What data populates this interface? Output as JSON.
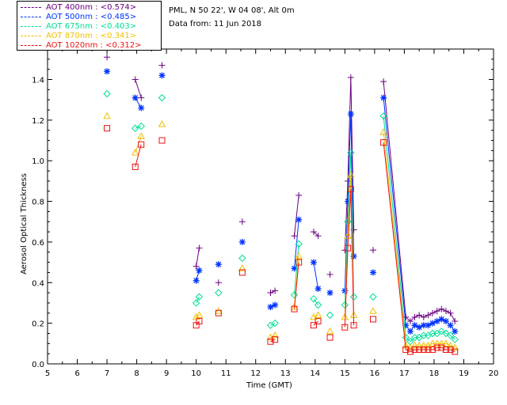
{
  "info": {
    "station": "PML, N 50 22', W 04 08', Alt 0m",
    "date": "Data from: 11 Jun 2018"
  },
  "colors": {
    "aot400": "#6a0080",
    "aot500": "#0033ff",
    "aot675": "#00dd99",
    "aot870": "#f0c000",
    "aot1020": "#ee1111"
  },
  "chart_data": {
    "type": "scatter",
    "xlabel": "Time (GMT)",
    "ylabel": "Aerosol Optical Thickness",
    "xlim": [
      5,
      20
    ],
    "ylim": [
      0,
      1.55
    ],
    "xticks": [
      5,
      6,
      7,
      8,
      9,
      10,
      11,
      12,
      13,
      14,
      15,
      16,
      17,
      18,
      19,
      20
    ],
    "yticks": [
      0.0,
      0.2,
      0.4,
      0.6,
      0.8,
      1.0,
      1.2,
      1.4
    ],
    "ytick_labels": [
      "0.0",
      "0.2",
      "0.4",
      "0.6",
      "0.8",
      "1.0",
      "1.2",
      "1.4"
    ],
    "grid": false,
    "legend_position": "top-left",
    "x": [
      7.0,
      7.95,
      8.15,
      8.85,
      10.0,
      10.1,
      10.75,
      11.55,
      12.5,
      12.65,
      13.3,
      13.45,
      13.95,
      14.1,
      14.5,
      15.0,
      15.1,
      15.2,
      15.3,
      15.95,
      16.3,
      17.05,
      17.2,
      17.35,
      17.5,
      17.65,
      17.8,
      17.95,
      18.1,
      18.25,
      18.4,
      18.55,
      18.7
    ],
    "segments": [
      [
        1,
        2
      ],
      [
        4,
        5
      ],
      [
        8,
        9
      ],
      [
        10,
        11
      ],
      [
        12,
        13
      ],
      [
        15,
        18
      ],
      [
        20,
        32
      ]
    ],
    "series": [
      {
        "name": "AOT  400nm : <0.574>",
        "marker": "plus",
        "values": [
          1.51,
          1.4,
          1.31,
          1.47,
          0.48,
          0.57,
          0.4,
          0.7,
          0.35,
          0.36,
          0.63,
          0.83,
          0.65,
          0.63,
          0.44,
          0.56,
          0.9,
          1.41,
          0.66,
          0.56,
          1.39,
          0.23,
          0.21,
          0.23,
          0.24,
          0.23,
          0.24,
          0.25,
          0.26,
          0.27,
          0.26,
          0.25,
          0.21
        ]
      },
      {
        "name": "AOT  500nm : <0.485>",
        "marker": "star",
        "values": [
          1.44,
          1.31,
          1.26,
          1.42,
          0.41,
          0.46,
          0.49,
          0.6,
          0.28,
          0.29,
          0.47,
          0.71,
          0.5,
          0.37,
          0.35,
          0.36,
          0.8,
          1.23,
          0.53,
          0.45,
          1.31,
          0.19,
          0.16,
          0.19,
          0.18,
          0.19,
          0.19,
          0.2,
          0.21,
          0.22,
          0.21,
          0.19,
          0.16
        ]
      },
      {
        "name": "AOT  675nm : <0.403>",
        "marker": "diamond",
        "values": [
          1.33,
          1.16,
          1.17,
          1.31,
          0.3,
          0.33,
          0.35,
          0.52,
          0.19,
          0.2,
          0.34,
          0.59,
          0.32,
          0.29,
          0.24,
          0.29,
          0.7,
          1.04,
          0.33,
          0.33,
          1.22,
          0.13,
          0.11,
          0.13,
          0.13,
          0.14,
          0.14,
          0.15,
          0.15,
          0.16,
          0.15,
          0.14,
          0.12
        ]
      },
      {
        "name": "AOT  870nm : <0.341>",
        "marker": "triangle",
        "values": [
          1.22,
          1.04,
          1.12,
          1.18,
          0.23,
          0.24,
          0.26,
          0.47,
          0.13,
          0.14,
          0.28,
          0.53,
          0.23,
          0.24,
          0.16,
          0.23,
          0.63,
          0.93,
          0.24,
          0.26,
          1.14,
          0.09,
          0.08,
          0.09,
          0.09,
          0.09,
          0.09,
          0.1,
          0.1,
          0.1,
          0.1,
          0.09,
          0.08
        ]
      },
      {
        "name": "AOT 1020nm : <0.312>",
        "marker": "square",
        "values": [
          1.16,
          0.97,
          1.08,
          1.1,
          0.19,
          0.21,
          0.25,
          0.45,
          0.11,
          0.12,
          0.27,
          0.5,
          0.19,
          0.21,
          0.13,
          0.18,
          0.57,
          0.86,
          0.19,
          0.22,
          1.09,
          0.07,
          0.06,
          0.07,
          0.07,
          0.07,
          0.07,
          0.07,
          0.08,
          0.08,
          0.07,
          0.07,
          0.06
        ]
      }
    ]
  }
}
